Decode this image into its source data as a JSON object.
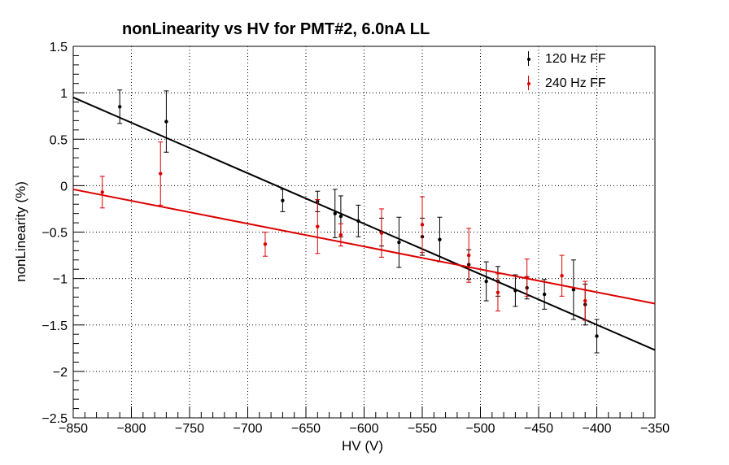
{
  "chart_data": {
    "type": "scatter",
    "title": "nonLinearity vs HV for PMT#2, 6.0nA LL",
    "xlabel": "HV (V)",
    "ylabel": "nonLinearity (%)",
    "xlim": [
      -850,
      -350
    ],
    "ylim": [
      -2.5,
      1.5
    ],
    "xticks": [
      -850,
      -800,
      -750,
      -700,
      -650,
      -600,
      -550,
      -500,
      -450,
      -400,
      -350
    ],
    "yticks": [
      -2.5,
      -2,
      -1.5,
      -1,
      -0.5,
      0,
      0.5,
      1,
      1.5
    ],
    "xtick_labels": [
      "−850",
      "−800",
      "−750",
      "−700",
      "−650",
      "−600",
      "−550",
      "−500",
      "−450",
      "−400",
      "−350"
    ],
    "ytick_labels": [
      "−2.5",
      "−2",
      "−1.5",
      "−1",
      "−0.5",
      "0",
      "0.5",
      "1",
      "1.5"
    ],
    "grid": true,
    "legend_position": "top-right",
    "series": [
      {
        "name": "120 Hz FF",
        "color": "#000000",
        "x": [
          -810,
          -770,
          -670,
          -640,
          -625,
          -620,
          -605,
          -585,
          -570,
          -550,
          -535,
          -510,
          -495,
          -485,
          -470,
          -460,
          -445,
          -420,
          -410,
          -400
        ],
        "y": [
          0.85,
          0.69,
          -0.16,
          -0.17,
          -0.3,
          -0.33,
          -0.38,
          -0.5,
          -0.61,
          -0.55,
          -0.58,
          -0.85,
          -1.03,
          -1.03,
          -1.13,
          -1.1,
          -1.17,
          -1.12,
          -1.28,
          -1.62
        ],
        "yerr": [
          0.18,
          0.33,
          0.12,
          0.11,
          0.26,
          0.22,
          0.17,
          0.15,
          0.27,
          0.2,
          0.24,
          0.16,
          0.21,
          0.16,
          0.17,
          0.12,
          0.16,
          0.32,
          0.22,
          0.18
        ],
        "fit": {
          "x": [
            -850,
            -350
          ],
          "y": [
            0.95,
            -1.77
          ]
        }
      },
      {
        "name": "240 Hz FF",
        "color": "#dd0000",
        "x": [
          -825,
          -775,
          -685,
          -640,
          -620,
          -585,
          -550,
          -510,
          -485,
          -460,
          -430,
          -410
        ],
        "y": [
          -0.07,
          0.13,
          -0.63,
          -0.44,
          -0.53,
          -0.51,
          -0.42,
          -0.75,
          -1.15,
          -0.99,
          -0.97,
          -1.24
        ],
        "yerr": [
          0.17,
          0.34,
          0.13,
          0.29,
          0.12,
          0.26,
          0.3,
          0.29,
          0.2,
          0.2,
          0.22,
          0.21
        ],
        "fit": {
          "x": [
            -850,
            -350
          ],
          "y": [
            -0.04,
            -1.27
          ]
        }
      }
    ]
  }
}
